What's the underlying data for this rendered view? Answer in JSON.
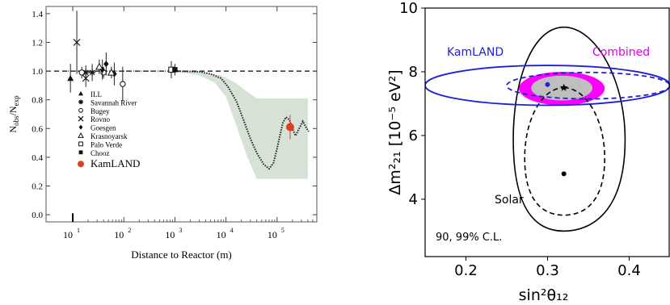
{
  "chart_data": [
    {
      "type": "scatter",
      "title": "",
      "xlabel": "Distance to Reactor (m)",
      "ylabel": "N_obs/N_exp",
      "xscale": "log",
      "xlim": [
        3,
        600000
      ],
      "ylim": [
        -0.05,
        1.45
      ],
      "xticks": [
        {
          "v": 10,
          "base": "10",
          "exp": "1"
        },
        {
          "v": 100,
          "base": "10",
          "exp": "2"
        },
        {
          "v": 1000,
          "base": "10",
          "exp": "3"
        },
        {
          "v": 10000,
          "base": "10",
          "exp": "4"
        },
        {
          "v": 100000,
          "base": "10",
          "exp": "5"
        }
      ],
      "yticks": [
        "0.0",
        "0.2",
        "0.4",
        "0.6",
        "0.8",
        "1.0",
        "1.2",
        "1.4"
      ],
      "reference_line": 1.0,
      "legend_position": "lower-left",
      "legend": [
        {
          "label": "ILL",
          "marker": "triangle-filled"
        },
        {
          "label": "Savannah River",
          "marker": "star"
        },
        {
          "label": "Bugey",
          "marker": "circle-open"
        },
        {
          "label": "Rovno",
          "marker": "cross"
        },
        {
          "label": "Goesgen",
          "marker": "diamond-filled"
        },
        {
          "label": "Krasnoyarsk",
          "marker": "triangle-open"
        },
        {
          "label": "Palo Verde",
          "marker": "square-open"
        },
        {
          "label": "Chooz",
          "marker": "square-filled"
        },
        {
          "label": "KamLAND",
          "marker": "circle-red"
        }
      ],
      "series": [
        {
          "name": "ILL",
          "marker": "triangle-filled",
          "points": [
            {
              "x": 9,
              "y": 0.95,
              "err": 0.1
            }
          ]
        },
        {
          "name": "Savannah River",
          "marker": "star",
          "points": [
            {
              "x": 18,
              "y": 0.99,
              "err": 0.05
            },
            {
              "x": 24,
              "y": 0.99,
              "err": 0.06
            }
          ]
        },
        {
          "name": "Bugey",
          "marker": "circle-open",
          "points": [
            {
              "x": 15,
              "y": 0.99,
              "err": 0.04
            },
            {
              "x": 40,
              "y": 0.99,
              "err": 0.04
            },
            {
              "x": 95,
              "y": 0.91,
              "err": 0.12
            }
          ]
        },
        {
          "name": "Rovno",
          "marker": "cross",
          "points": [
            {
              "x": 12,
              "y": 1.2,
              "err": 0.22
            },
            {
              "x": 18,
              "y": 0.95,
              "err": 0.06
            }
          ]
        },
        {
          "name": "Goesgen",
          "marker": "diamond-filled",
          "points": [
            {
              "x": 38,
              "y": 1.01,
              "err": 0.07
            },
            {
              "x": 45,
              "y": 1.05,
              "err": 0.08
            },
            {
              "x": 65,
              "y": 0.98,
              "err": 0.08
            }
          ]
        },
        {
          "name": "Krasnoyarsk",
          "marker": "triangle-open",
          "points": [
            {
              "x": 33,
              "y": 1.03,
              "err": 0.05
            },
            {
              "x": 57,
              "y": 0.99,
              "err": 0.04
            }
          ]
        },
        {
          "name": "Palo Verde",
          "marker": "square-open",
          "points": [
            {
              "x": 850,
              "y": 1.01,
              "err": 0.06
            }
          ]
        },
        {
          "name": "Chooz",
          "marker": "square-filled",
          "points": [
            {
              "x": 1000,
              "y": 1.01,
              "err": 0.04
            }
          ]
        },
        {
          "name": "KamLAND",
          "marker": "circle-red",
          "points": [
            {
              "x": 180000,
              "y": 0.61,
              "err": 0.085
            }
          ]
        }
      ],
      "prediction_band": {
        "upper": [
          [
            1000,
            1.0
          ],
          [
            3000,
            0.99
          ],
          [
            8000,
            0.97
          ],
          [
            15000,
            0.92
          ],
          [
            25000,
            0.86
          ],
          [
            40000,
            0.81
          ],
          [
            100000,
            0.81
          ],
          [
            400000,
            0.81
          ]
        ],
        "lower": [
          [
            1000,
            1.0
          ],
          [
            3000,
            0.97
          ],
          [
            6000,
            0.92
          ],
          [
            10000,
            0.82
          ],
          [
            16000,
            0.62
          ],
          [
            25000,
            0.42
          ],
          [
            40000,
            0.25
          ],
          [
            100000,
            0.25
          ],
          [
            400000,
            0.25
          ]
        ]
      },
      "oscillation_curve": [
        [
          1000,
          1.0
        ],
        [
          3000,
          0.995
        ],
        [
          5000,
          0.98
        ],
        [
          8000,
          0.95
        ],
        [
          11000,
          0.89
        ],
        [
          16000,
          0.79
        ],
        [
          22000,
          0.66
        ],
        [
          30000,
          0.53
        ],
        [
          40000,
          0.43
        ],
        [
          55000,
          0.35
        ],
        [
          70000,
          0.32
        ],
        [
          85000,
          0.36
        ],
        [
          100000,
          0.46
        ],
        [
          115000,
          0.56
        ],
        [
          130000,
          0.64
        ],
        [
          150000,
          0.68
        ],
        [
          175000,
          0.66
        ],
        [
          200000,
          0.6
        ],
        [
          230000,
          0.55
        ],
        [
          270000,
          0.6
        ],
        [
          320000,
          0.65
        ],
        [
          380000,
          0.6
        ],
        [
          420000,
          0.58
        ]
      ]
    },
    {
      "type": "contour",
      "title": "",
      "xlabel": "sin²θ₁₂",
      "ylabel": "Δm²₂₁ [10⁻⁵ eV²]",
      "xlim": [
        0.15,
        0.45
      ],
      "ylim": [
        2.2,
        10
      ],
      "xticks": [
        "0.2",
        "0.3",
        "0.4"
      ],
      "yticks": [
        "4",
        "6",
        "8",
        "10"
      ],
      "annotation": "90, 99% C.L.",
      "labels": [
        {
          "text": "KamLAND",
          "color": "#1f1fd6"
        },
        {
          "text": "Combined",
          "color": "#e000e0"
        },
        {
          "text": "Solar",
          "color": "#000000"
        }
      ],
      "colors": {
        "kamland": "#1f1fd6",
        "combined": "#ff00ff",
        "combined_inner": "#bfbfbf",
        "solar": "#000000"
      },
      "solar_99": {
        "center": [
          0.32,
          6.0
        ],
        "x_range": [
          0.258,
          0.395
        ],
        "y_range": [
          3.0,
          9.4
        ]
      },
      "solar_90": {
        "center": [
          0.32,
          5.6
        ],
        "x_range": [
          0.272,
          0.37
        ],
        "y_range": [
          3.5,
          7.5
        ]
      },
      "kamland_99": {
        "x_range": [
          0.15,
          0.45
        ],
        "y_range": [
          6.95,
          8.2
        ]
      },
      "kamland_90": {
        "x_range": [
          0.25,
          0.45
        ],
        "y_range": [
          7.15,
          7.98
        ]
      },
      "combined_99": {
        "x_range": [
          0.265,
          0.37
        ],
        "y_range": [
          6.95,
          8.0
        ]
      },
      "combined_90": {
        "x_range": [
          0.28,
          0.355
        ],
        "y_range": [
          7.1,
          7.88
        ]
      },
      "best_fits": [
        {
          "name": "Solar",
          "x": 0.32,
          "y": 4.8,
          "marker": "dot",
          "color": "#000000"
        },
        {
          "name": "KamLAND",
          "x": 0.3,
          "y": 7.6,
          "marker": "dot",
          "color": "#1f1fd6"
        },
        {
          "name": "Combined",
          "x": 0.32,
          "y": 7.5,
          "marker": "star",
          "color": "#000000"
        }
      ]
    }
  ]
}
